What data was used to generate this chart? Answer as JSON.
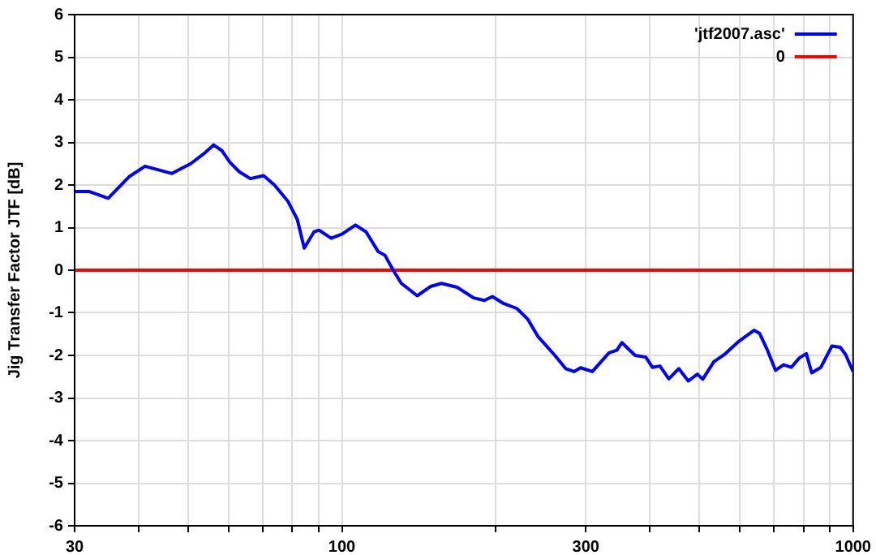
{
  "chart_data": {
    "type": "line",
    "ylabel": "Jig Transfer Factor JTF [dB]",
    "log": "x",
    "xlim": [
      30,
      1000
    ],
    "ylim": [
      -6,
      6
    ],
    "xticks": [
      30,
      {
        "value": 40,
        "label": null
      },
      {
        "value": 50,
        "label": null
      },
      {
        "value": 60,
        "label": null
      },
      {
        "value": 70,
        "label": null
      },
      {
        "value": 80,
        "label": null
      },
      {
        "value": 90,
        "label": null
      },
      100,
      {
        "value": 200,
        "label": null
      },
      300,
      {
        "value": 400,
        "label": null
      },
      {
        "value": 500,
        "label": null
      },
      {
        "value": 600,
        "label": null
      },
      {
        "value": 700,
        "label": null
      },
      {
        "value": 800,
        "label": null
      },
      {
        "value": 900,
        "label": null
      },
      1000
    ],
    "yticks": [
      -6,
      -5,
      -4,
      -3,
      -2,
      -1,
      0,
      1,
      2,
      3,
      4,
      5,
      6
    ],
    "grid": true,
    "legend": "top right",
    "marker": "none",
    "line_style": "solid",
    "series": [
      {
        "name": "'jtf2007.asc'",
        "color": "#0000ff",
        "x": [
          30,
          32,
          34.9,
          38.3,
          41.2,
          46.5,
          50.6,
          53.9,
          56.1,
          58.2,
          60.4,
          63,
          66.2,
          70.3,
          73.8,
          78.4,
          81.8,
          84.4,
          88.2,
          90.2,
          95.3,
          100.1,
          106.3,
          111.5,
          117.7,
          121.4,
          126,
          130.7,
          140.4,
          149.2,
          156.6,
          168,
          181,
          190,
          197,
          207,
          220,
          231,
          242,
          261,
          274,
          284.5,
          293,
          309,
          333,
          345,
          353,
          374.6,
          393,
          405,
          419,
          436,
          456,
          476,
          496,
          508,
          534,
          560,
          595,
          640,
          656,
          680,
          705,
          731,
          757,
          785,
          810,
          830,
          865,
          909,
          944,
          967,
          1000
        ],
        "values": [
          1.85,
          1.85,
          1.69,
          2.19,
          2.44,
          2.27,
          2.5,
          2.75,
          2.94,
          2.81,
          2.53,
          2.31,
          2.15,
          2.22,
          2,
          1.62,
          1.19,
          0.52,
          0.9,
          0.94,
          0.75,
          0.85,
          1.06,
          0.9,
          0.44,
          0.35,
          0,
          -0.31,
          -0.6,
          -0.38,
          -0.31,
          -0.4,
          -0.65,
          -0.71,
          -0.62,
          -0.78,
          -0.9,
          -1.15,
          -1.56,
          -2,
          -2.31,
          -2.38,
          -2.29,
          -2.38,
          -1.94,
          -1.88,
          -1.7,
          -2,
          -2.04,
          -2.28,
          -2.25,
          -2.55,
          -2.31,
          -2.6,
          -2.44,
          -2.56,
          -2.15,
          -1.98,
          -1.69,
          -1.41,
          -1.48,
          -1.88,
          -2.35,
          -2.22,
          -2.28,
          -2.06,
          -1.96,
          -2.41,
          -2.28,
          -1.78,
          -1.81,
          -1.98,
          -2.38
        ]
      },
      {
        "name": "0",
        "color": "#ff0000",
        "x": [
          30,
          1000
        ],
        "values": [
          0,
          0
        ]
      }
    ]
  }
}
